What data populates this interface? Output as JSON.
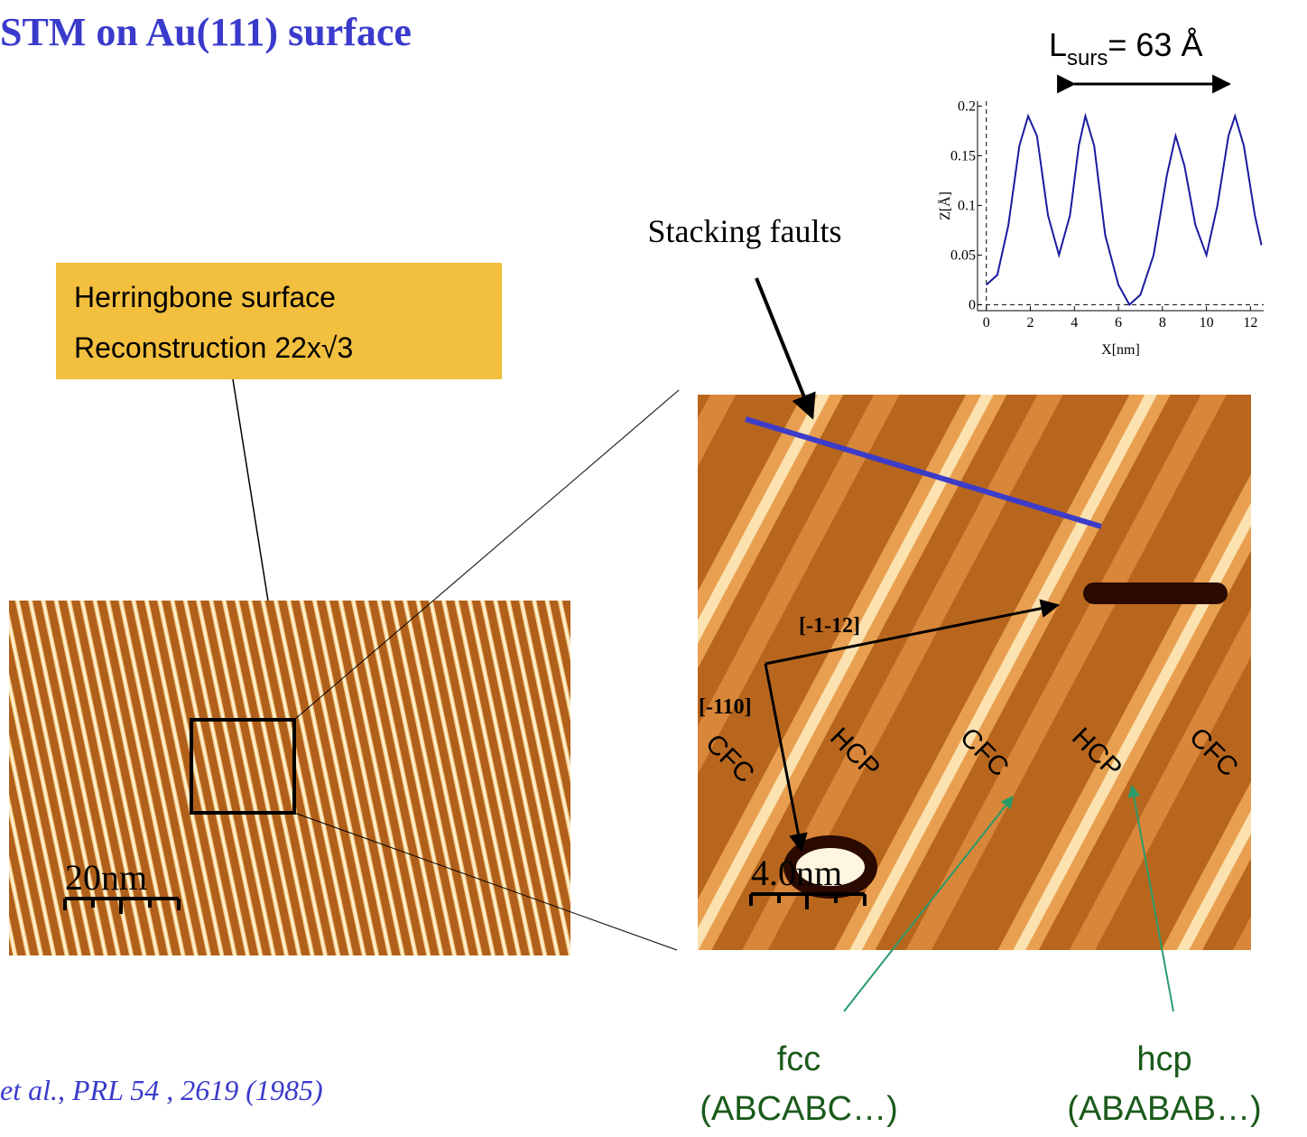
{
  "title": "STM on Au(111) surface",
  "citation": "et al., PRL 54 , 2619 (1985)",
  "callout": {
    "lines": [
      "Herringbone surface",
      "Reconstruction 22x√3"
    ]
  },
  "period": {
    "main": "L",
    "sub": "surs",
    "rest": "= 63 Å"
  },
  "stacking_label": "Stacking faults",
  "scale_bars": [
    "20nm",
    "4.0nm"
  ],
  "directions": [
    "[-1-12]",
    "[-110]"
  ],
  "domains": [
    "CFC",
    "HCP",
    "CFC",
    "HCP",
    "CFC"
  ],
  "stackings": [
    {
      "name": "fcc",
      "sequence": "(ABCABC…)"
    },
    {
      "name": "hcp",
      "sequence": "(ABABAB…)"
    }
  ],
  "chart_data": {
    "type": "line",
    "xlabel": "X[nm]",
    "ylabel": "Z[Å]",
    "x": [
      0,
      0.5,
      1.0,
      1.5,
      1.9,
      2.3,
      2.8,
      3.3,
      3.8,
      4.2,
      4.5,
      4.9,
      5.4,
      6.0,
      6.5,
      7.0,
      7.6,
      8.2,
      8.6,
      9.0,
      9.5,
      10.0,
      10.5,
      11.0,
      11.3,
      11.7,
      12.2,
      12.5
    ],
    "series": [
      {
        "color": "#1a1aa0",
        "values": [
          0.02,
          0.03,
          0.08,
          0.16,
          0.19,
          0.17,
          0.09,
          0.05,
          0.09,
          0.16,
          0.19,
          0.16,
          0.07,
          0.02,
          0.0,
          0.01,
          0.05,
          0.13,
          0.17,
          0.14,
          0.08,
          0.05,
          0.1,
          0.17,
          0.19,
          0.16,
          0.09,
          0.06
        ]
      }
    ],
    "xlim": [
      -0.4,
      12.6
    ],
    "ylim": [
      -0.006,
      0.205
    ],
    "xticks": [
      0,
      2,
      4,
      6,
      8,
      10,
      12
    ],
    "yticks": [
      0,
      0.05,
      0.1,
      0.15,
      0.2
    ]
  }
}
